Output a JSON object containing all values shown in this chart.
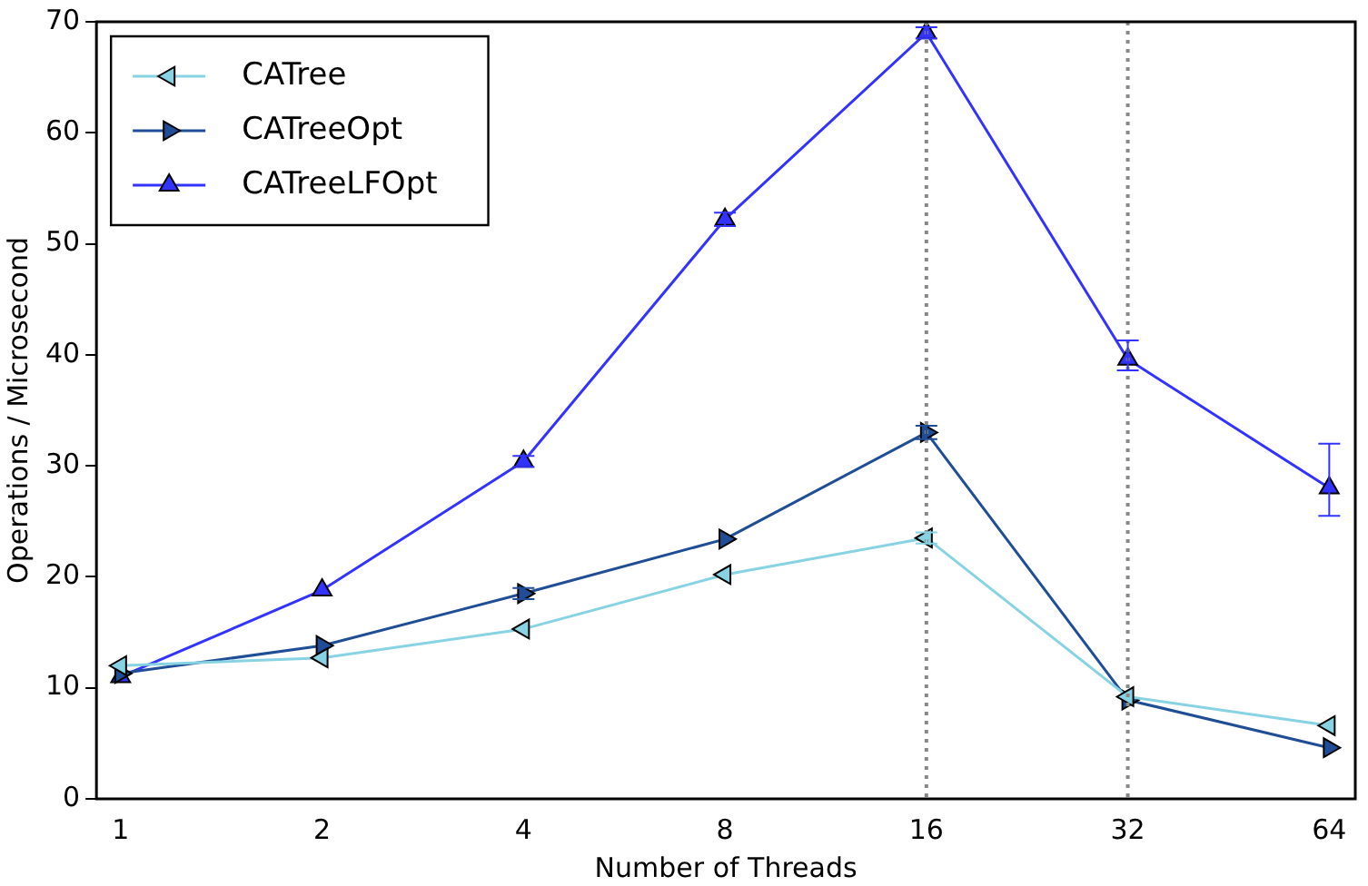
{
  "chart_data": {
    "type": "line",
    "xlabel": "Number of Threads",
    "ylabel": "Operations / Microsecond",
    "x": [
      1,
      2,
      4,
      8,
      16,
      32,
      64
    ],
    "log": "x",
    "xlim": [
      0.92,
      70
    ],
    "xticks": [
      1,
      2,
      4,
      8,
      16,
      32,
      64
    ],
    "ylim": [
      0,
      70
    ],
    "yticks": [
      0,
      10,
      20,
      30,
      40,
      50,
      60,
      70
    ],
    "grid": false,
    "legend": "top left",
    "marker": "triangle",
    "line_style": "solid",
    "series": [
      {
        "name": "CATree",
        "color": "#87d3e3",
        "values": [
          12,
          12.7,
          15.3,
          20.2,
          23.5,
          9.2,
          6.6
        ],
        "errors": [
          null,
          null,
          null,
          null,
          0.5,
          null,
          null
        ]
      },
      {
        "name": "CATreeOpt",
        "color": "#1f4e96",
        "values": [
          11.3,
          13.8,
          18.5,
          23.4,
          33,
          8.9,
          4.6
        ],
        "errors": [
          null,
          null,
          0.5,
          null,
          0.6,
          null,
          null
        ]
      },
      {
        "name": "CATreeLFOpt",
        "color": "#3333ff",
        "values": [
          11,
          18.8,
          30.4,
          52.2,
          69,
          39.6,
          28
        ],
        "errors": [
          null,
          null,
          0.5,
          0.6,
          0.5,
          [
            38.6,
            41.3
          ],
          [
            25.5,
            32
          ]
        ]
      }
    ],
    "ref_lines": [
      {
        "axis": "x",
        "value": 16,
        "color": "#888888",
        "line_style": "dotted"
      },
      {
        "axis": "x",
        "value": 32,
        "color": "#888888",
        "line_style": "dotted"
      }
    ]
  }
}
